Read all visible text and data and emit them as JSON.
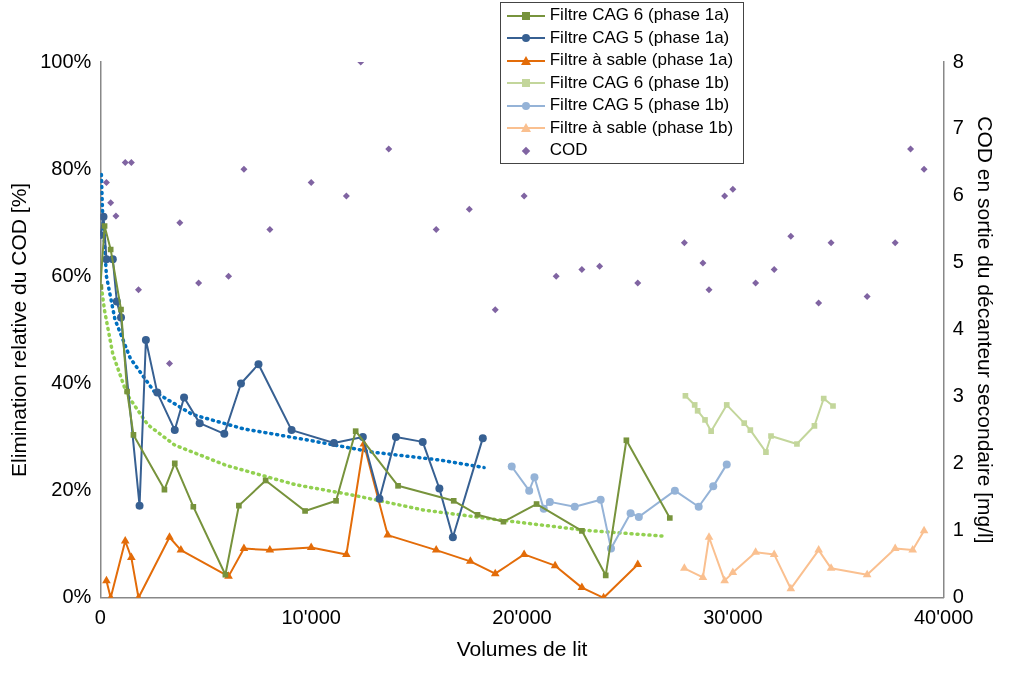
{
  "chart_data": {
    "type": "line",
    "xlabel": "Volumes de lit",
    "ylabel": "Elimination relative du COD [%]",
    "y2label": "COD en sortie du décanteur secondaire [mg/l]",
    "xlim": [
      0,
      40000
    ],
    "xticks": [
      0,
      {
        "value": 10000,
        "label": "10'000"
      },
      {
        "value": 20000,
        "label": "20'000"
      },
      {
        "value": 30000,
        "label": "30'000"
      },
      {
        "value": 40000,
        "label": "40'000"
      }
    ],
    "ylim": [
      0,
      100
    ],
    "yticks": [
      {
        "value": 0,
        "label": "0%"
      },
      {
        "value": 20,
        "label": "20%"
      },
      {
        "value": 40,
        "label": "40%"
      },
      {
        "value": 60,
        "label": "60%"
      },
      {
        "value": 80,
        "label": "80%"
      },
      {
        "value": 100,
        "label": "100%"
      }
    ],
    "y2lim": [
      0,
      8
    ],
    "y2ticks": [
      0,
      1,
      2,
      3,
      4,
      5,
      6,
      7,
      8
    ],
    "grid": false,
    "legend": "top right",
    "series": [
      {
        "name": "Filtre CAG 6 (phase 1a)",
        "marker": "square",
        "color": "#77933c",
        "x": [
          0,
          200,
          490,
          980,
          1270,
          1570,
          3040,
          3530,
          4410,
          5930,
          6570,
          7840,
          9710,
          11180,
          12110,
          14120,
          16760,
          17890,
          19120,
          20690,
          22840,
          23970,
          24950,
          27010
        ],
        "values": [
          58,
          69.4,
          65,
          53.8,
          38.5,
          30.4,
          20.2,
          25.1,
          17,
          4.3,
          17.2,
          21.9,
          16.2,
          18.1,
          31.1,
          20.9,
          18.1,
          15.5,
          14.2,
          17.5,
          12.5,
          4.2,
          29.4,
          14.9
        ]
      },
      {
        "name": "Filtre CAG 5 (phase 1a)",
        "marker": "circle",
        "color": "#376092",
        "x": [
          0,
          150,
          290,
          590,
          780,
          980,
          1860,
          2160,
          2700,
          3530,
          3970,
          4710,
          5880,
          6670,
          7500,
          9070,
          11080,
          12450,
          13240,
          14020,
          15290,
          16080,
          16720,
          18140
        ],
        "values": [
          67.7,
          71.1,
          63.2,
          63.2,
          55.3,
          52.3,
          17.2,
          48.1,
          38.3,
          31.3,
          37.4,
          32.6,
          30.6,
          40,
          43.6,
          31.3,
          28.9,
          30,
          18.5,
          30,
          29.1,
          20.4,
          11.3,
          29.8
        ]
      },
      {
        "name": "Filtre à sable (phase 1a)",
        "marker": "triangle",
        "color": "#e36c09",
        "x": [
          290,
          490,
          1180,
          1470,
          1810,
          3280,
          3820,
          6080,
          6810,
          8040,
          10000,
          11670,
          12500,
          13630,
          15930,
          17550,
          18730,
          20100,
          21570,
          22840,
          23870,
          25490
        ],
        "values": [
          3.2,
          0,
          10.6,
          7.5,
          0,
          11.3,
          8.9,
          4,
          9.2,
          8.9,
          9.4,
          8.1,
          28.7,
          11.7,
          8.9,
          6.8,
          4.5,
          8.1,
          6,
          1.9,
          0,
          6.2
        ]
      },
      {
        "name": "Filtre CAG 6 (phase 1b)",
        "marker": "square",
        "color": "#c3d69b",
        "x": [
          27750,
          28190,
          28330,
          28680,
          28970,
          29710,
          30540,
          30830,
          31570,
          31810,
          33040,
          33870,
          34310,
          34750
        ],
        "values": [
          37.7,
          36,
          34.9,
          33.2,
          31.1,
          36,
          32.6,
          31.3,
          27.2,
          30.2,
          28.7,
          32.1,
          37.2,
          35.8
        ]
      },
      {
        "name": "Filtre CAG 5 (phase 1b)",
        "marker": "circle",
        "color": "#95b3d7",
        "x": [
          19510,
          20340,
          20590,
          21030,
          21320,
          22500,
          23730,
          24220,
          25150,
          25540,
          27250,
          28380,
          29070,
          29710
        ],
        "values": [
          24.5,
          20,
          22.5,
          16.6,
          17.9,
          17,
          18.3,
          9.2,
          15.8,
          15.1,
          20,
          17,
          20.8,
          24.9
        ]
      },
      {
        "name": "Filtre à sable (phase 1b)",
        "marker": "triangle",
        "color": "#fac090",
        "x": [
          27700,
          28580,
          28870,
          29610,
          30000,
          31080,
          31960,
          32750,
          34070,
          34660,
          36370,
          37700,
          38530,
          39070
        ],
        "values": [
          5.5,
          3.8,
          11.3,
          3.2,
          4.7,
          8.5,
          8.1,
          1.7,
          8.9,
          5.5,
          4.3,
          9.2,
          8.9,
          12.5
        ]
      },
      {
        "name": "COD",
        "type": "scatter",
        "marker": "diamond",
        "axis": "y2",
        "color": "#8064a2",
        "x": [
          290,
          490,
          740,
          1180,
          1470,
          1810,
          3280,
          3770,
          4660,
          6080,
          6810,
          8040,
          10000,
          11670,
          12350,
          13680,
          15930,
          17500,
          18730,
          20100,
          21620,
          22840,
          23680,
          25490,
          27700,
          28580,
          28870,
          29610,
          30000,
          31080,
          31960,
          32750,
          34070,
          34660,
          36370,
          37700,
          38430,
          39070
        ],
        "values": [
          6.2,
          5.9,
          5.7,
          6.5,
          6.5,
          4.6,
          3.5,
          5.6,
          4.7,
          4.8,
          6.4,
          5.5,
          6.2,
          6,
          8,
          6.7,
          5.5,
          5.8,
          4.3,
          6,
          4.8,
          4.9,
          4.95,
          4.7,
          5.3,
          5,
          4.6,
          6,
          6.1,
          4.7,
          4.9,
          5.4,
          4.4,
          5.3,
          4.5,
          5.3,
          6.7,
          6.4
        ]
      },
      {
        "marker": "none",
        "line_style": "dotted",
        "color": "#0070c0",
        "x": [
          50,
          100,
          290,
          690,
          1420,
          2550,
          4370,
          6820,
          9620,
          12890,
          16130,
          18200
        ],
        "values": [
          79,
          72.5,
          60,
          52,
          44.7,
          38.5,
          34.2,
          31.5,
          29.6,
          27.2,
          25.7,
          24.3
        ]
      },
      {
        "marker": "none",
        "line_style": "dotted",
        "color": "#92d050",
        "x": [
          50,
          200,
          590,
          1270,
          2250,
          3530,
          5980,
          9260,
          12060,
          15290,
          18580,
          22990,
          26760
        ],
        "values": [
          58,
          53.6,
          45.5,
          37.9,
          32.3,
          28.5,
          24.7,
          21.1,
          19.1,
          16.4,
          14.7,
          12.6,
          11.5
        ]
      }
    ]
  }
}
